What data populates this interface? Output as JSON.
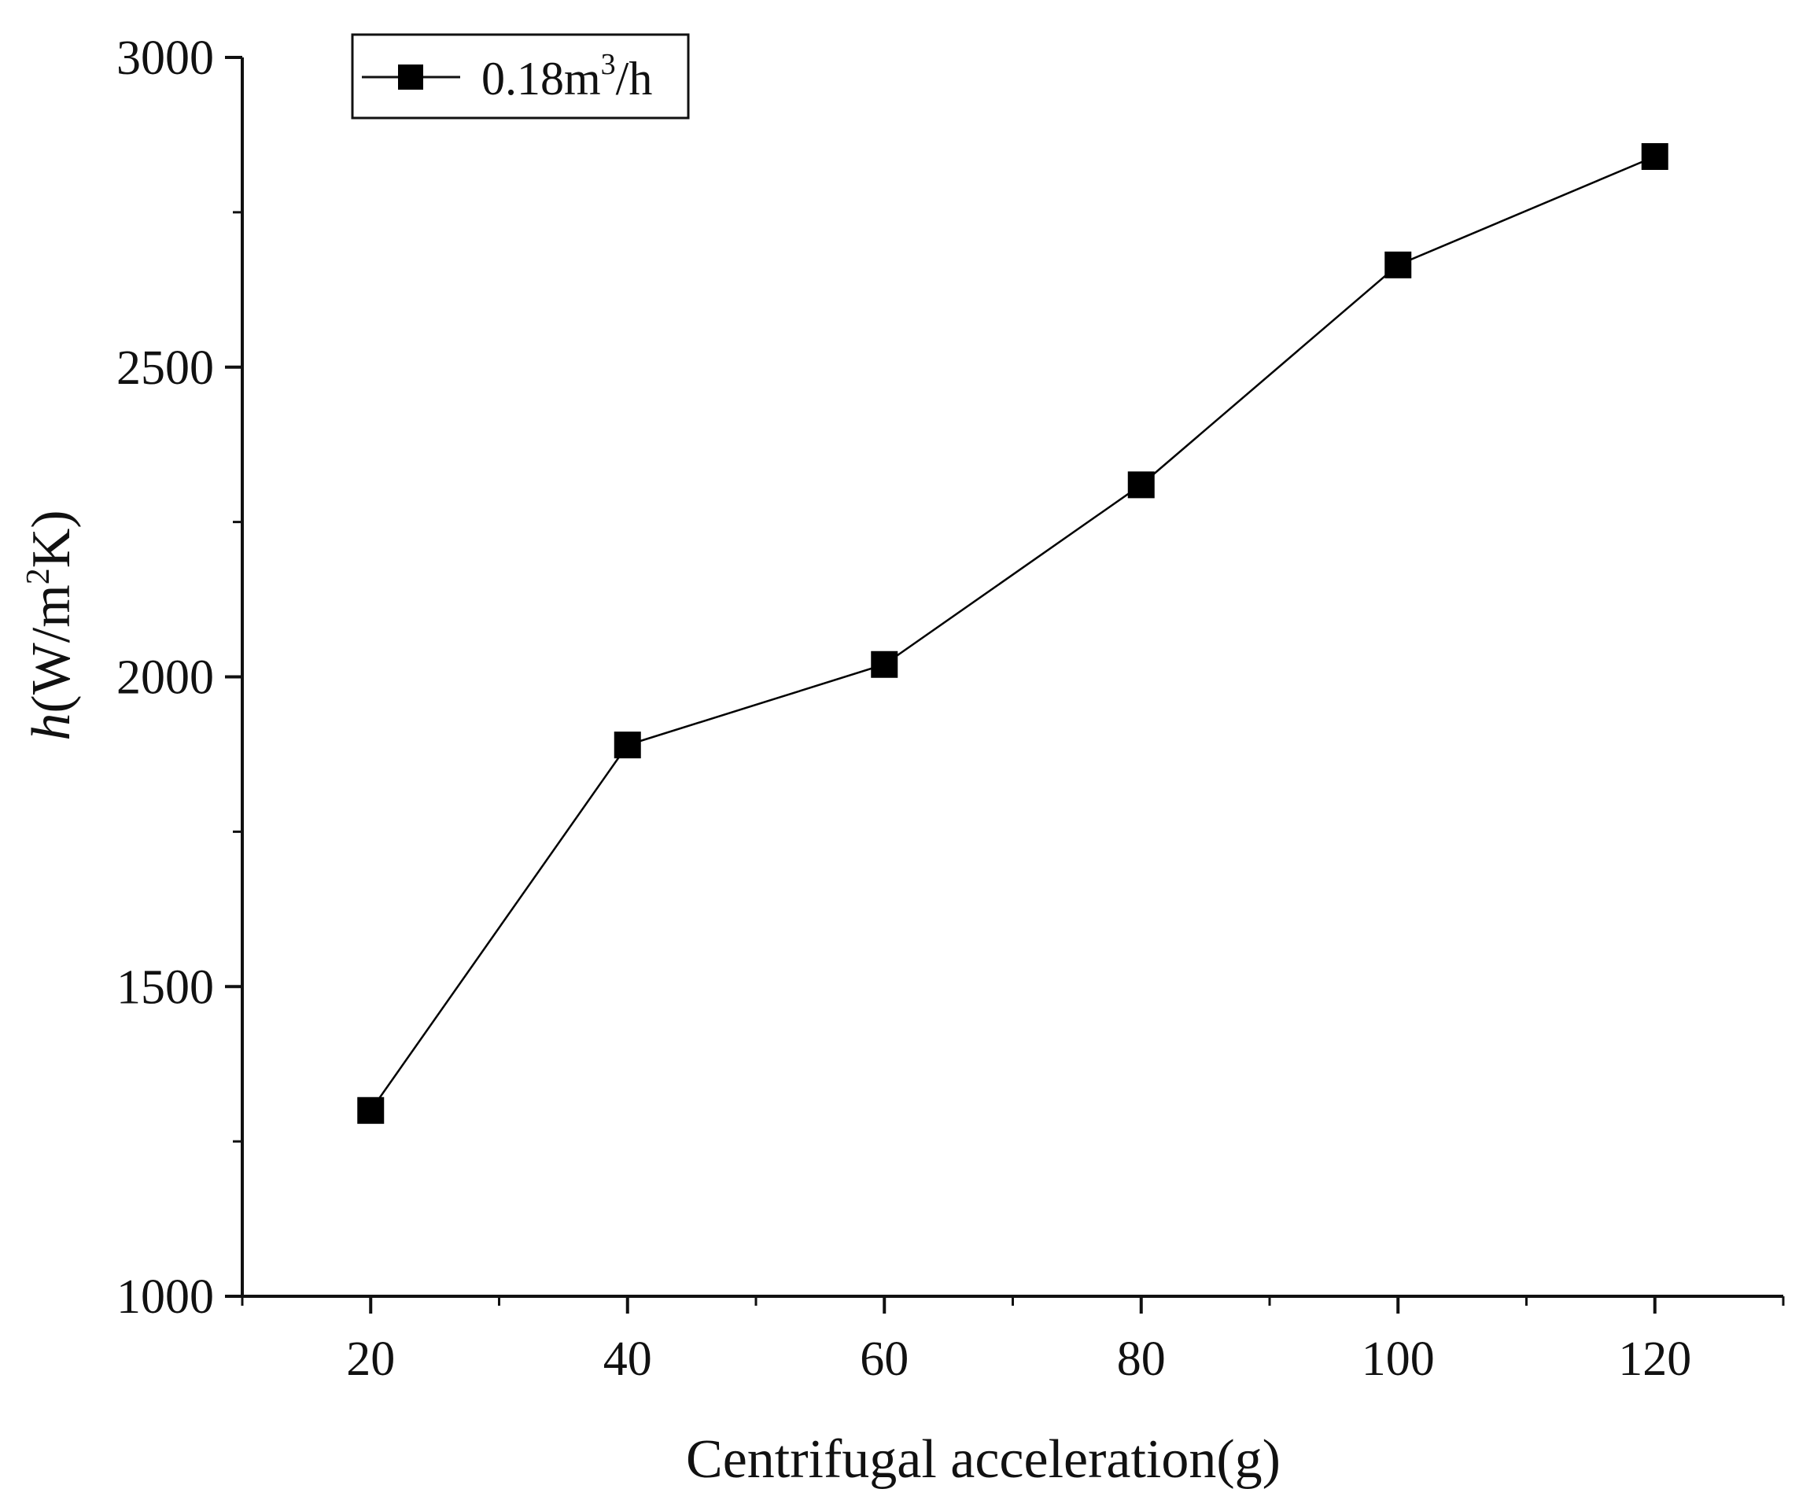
{
  "chart_data": {
    "type": "line",
    "title": "",
    "xlabel": "Centrifugal acceleration(g)",
    "ylabel": {
      "var": "h",
      "pre": "(W/m",
      "sup": "2",
      "post": "K)"
    },
    "xlim": [
      10,
      130
    ],
    "ylim": [
      1000,
      3000
    ],
    "x_ticks": [
      20,
      40,
      60,
      80,
      100,
      120
    ],
    "y_ticks": [
      1000,
      1500,
      2000,
      2500,
      3000
    ],
    "grid": false,
    "legend_position": "top-left",
    "series": [
      {
        "name": "0.18m3/h",
        "legend": {
          "pre": "0.18m",
          "sup": "3",
          "post": "/h"
        },
        "marker": "square",
        "color": "#000000",
        "x": [
          20,
          40,
          60,
          80,
          100,
          120
        ],
        "values": [
          1300,
          1890,
          2020,
          2310,
          2665,
          2840
        ]
      }
    ]
  }
}
